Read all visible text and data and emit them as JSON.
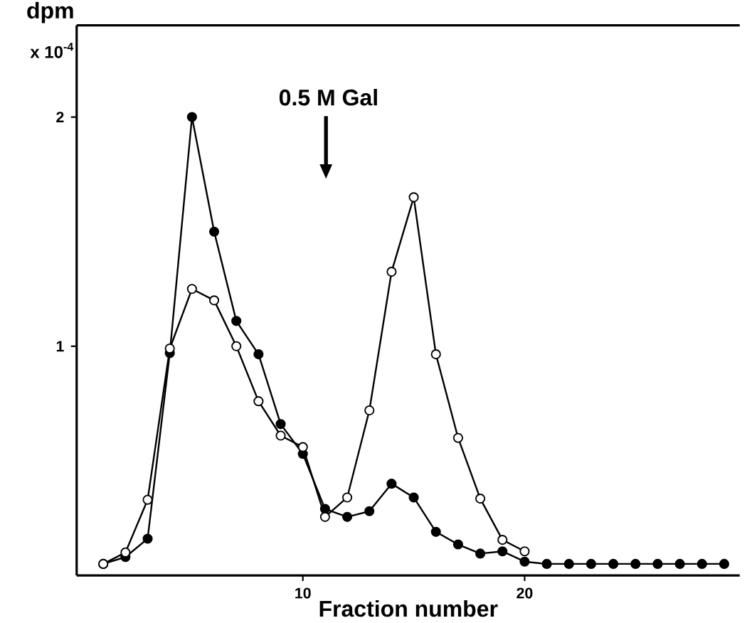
{
  "chart_data": {
    "type": "line",
    "xlabel": "Fraction number",
    "ylabel": "dpm",
    "annotations": [
      "x 10$^{-4}$",
      "0.5 M Gal"
    ],
    "xlim": [
      -0.2,
      29.7
    ],
    "ylim": [
      0,
      2.4
    ],
    "xticks": [
      10,
      20
    ],
    "yticks": [
      1,
      2
    ],
    "grid": false,
    "marker": "circle",
    "series": [
      {
        "color": "#000000",
        "x": [
          1,
          2,
          3,
          4,
          5,
          6,
          7,
          8,
          9,
          10,
          11,
          12,
          13,
          14,
          15,
          16,
          17,
          18,
          19,
          20,
          21,
          22,
          23,
          24,
          25,
          26,
          27,
          28,
          29
        ],
        "values": [
          0.05,
          0.08,
          0.16,
          0.97,
          2.0,
          1.5,
          1.11,
          0.965,
          0.66,
          0.53,
          0.29,
          0.255,
          0.28,
          0.4,
          0.34,
          0.19,
          0.135,
          0.095,
          0.105,
          0.06,
          0.05,
          0.05,
          0.05,
          0.05,
          0.05,
          0.05,
          0.05,
          0.05,
          0.05
        ]
      },
      {
        "color": "#000000",
        "x": [
          1,
          2,
          3,
          4,
          5,
          6,
          7,
          8,
          9,
          10,
          11,
          12,
          13,
          14,
          15,
          16,
          17,
          18,
          19,
          20
        ],
        "values": [
          0.05,
          0.1,
          0.33,
          0.99,
          1.25,
          1.2,
          1.0,
          0.76,
          0.61,
          0.56,
          0.255,
          0.34,
          0.72,
          1.325,
          1.65,
          0.965,
          0.6,
          0.335,
          0.155,
          0.105
        ]
      }
    ]
  }
}
